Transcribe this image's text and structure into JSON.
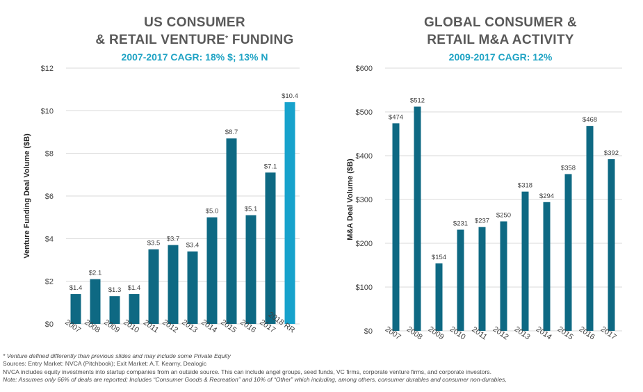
{
  "charts": {
    "left": {
      "title_line1": "US CONSUMER",
      "title_line2_prefix": "& RETAIL VENTURE",
      "title_sup": "*",
      "title_line2_suffix": " FUNDING",
      "subtitle": "2007-2017 CAGR: 18% $; 13% N"
    },
    "right": {
      "title_line1": "GLOBAL CONSUMER &",
      "title_line2": "RETAIL M&A ACTIVITY",
      "subtitle": "2009-2017 CAGR: 12%"
    }
  },
  "chart_data": [
    {
      "type": "bar",
      "title": "US CONSUMER & RETAIL VENTURE* FUNDING",
      "subtitle": "2007-2017 CAGR: 18% $; 13% N",
      "ylabel": "Venture Funding Deal Volume ($B)",
      "categories": [
        "2007",
        "2008",
        "2009",
        "2010",
        "2011",
        "2012",
        "2013",
        "2014",
        "2015",
        "2016",
        "2017",
        "2018 RR"
      ],
      "values": [
        1.4,
        2.1,
        1.3,
        1.4,
        3.5,
        3.7,
        3.4,
        5.0,
        8.7,
        5.1,
        7.1,
        10.4
      ],
      "value_labels": [
        "$1.4",
        "$2.1",
        "$1.3",
        "$1.4",
        "$3.5",
        "$3.7",
        "$3.4",
        "$5.0",
        "$8.7",
        "$5.1",
        "$7.1",
        "$10.4"
      ],
      "ylim": [
        0,
        12
      ],
      "yticks": [
        0,
        2,
        4,
        6,
        8,
        10,
        12
      ],
      "ytick_labels": [
        "$0",
        "$2",
        "$4",
        "$6",
        "$8",
        "$10",
        "$12"
      ],
      "grid": true,
      "colors": {
        "bar": "#0e6983",
        "highlight": "#17a2cc",
        "grid": "#d9d9d9"
      },
      "highlight_index": 11
    },
    {
      "type": "bar",
      "title": "GLOBAL CONSUMER & RETAIL M&A ACTIVITY",
      "subtitle": "2009-2017 CAGR: 12%",
      "ylabel": "M&A Deal Volume ($B)",
      "categories": [
        "2007",
        "2008",
        "2009",
        "2010",
        "2011",
        "2012",
        "2013",
        "2014",
        "2015",
        "2016",
        "2017"
      ],
      "values": [
        474,
        512,
        154,
        231,
        237,
        250,
        318,
        294,
        358,
        468,
        392
      ],
      "value_labels": [
        "$474",
        "$512",
        "$154",
        "$231",
        "$237",
        "$250",
        "$318",
        "$294",
        "$358",
        "$468",
        "$392"
      ],
      "ylim": [
        0,
        600
      ],
      "yticks": [
        0,
        100,
        200,
        300,
        400,
        500,
        600
      ],
      "ytick_labels": [
        "$0",
        "$100",
        "$200",
        "$300",
        "$400",
        "$500",
        "$600"
      ],
      "grid": true,
      "colors": {
        "bar": "#0e6983",
        "grid": "#d9d9d9"
      }
    }
  ],
  "footnotes": {
    "line1": "* Venture defined differently than previous slides and may include some Private Equity",
    "line2": "Sources: Entry Market: NVCA (Pitchbook); Exit Market: A.T. Kearny, Dealogic",
    "line3": "NVCA includes equity investments into startup companies from an outside source. This can include angel groups, seed funds, VC firms, corporate venture firms, and corporate investors.",
    "line4": "Note: Assumes only 66% of deals are reported; Includes “Consumer Goods & Recreation” and 10% of “Other” which including, among others, consumer durables and consumer non-durables,"
  }
}
